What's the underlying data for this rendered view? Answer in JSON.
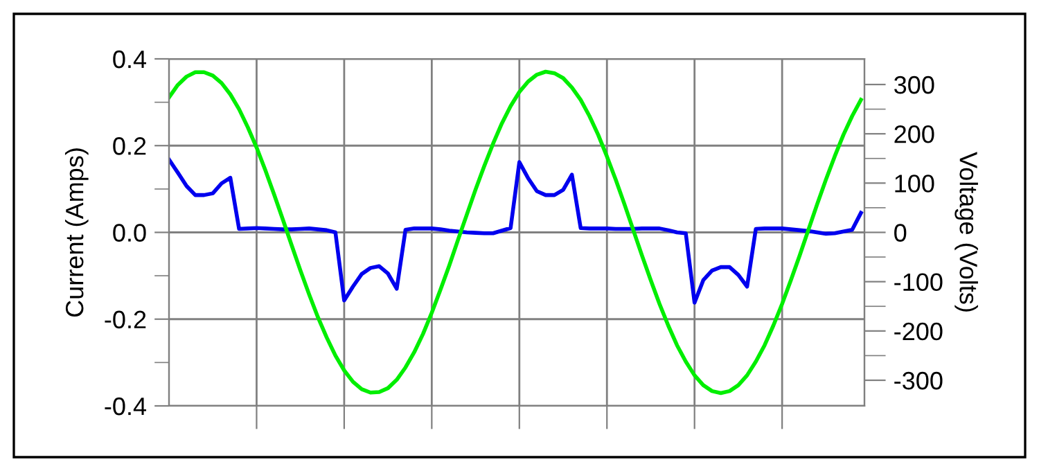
{
  "chart_data": {
    "type": "line",
    "ylabel": "Current (Amps)",
    "y2label": "Voltage (Volts)",
    "categories": [
      null,
      null,
      null,
      null,
      null,
      null,
      null,
      null,
      null,
      null,
      null,
      null,
      null,
      null,
      null,
      null,
      null,
      null,
      null,
      null,
      null,
      null,
      null,
      null,
      null,
      null,
      null,
      null,
      null,
      null,
      null,
      null,
      null,
      null,
      null,
      null,
      null,
      null,
      null,
      null,
      null,
      null,
      null,
      null,
      null,
      null,
      null,
      null,
      null,
      null,
      null,
      null,
      null,
      null,
      null,
      null,
      null,
      null,
      null,
      null,
      null,
      null,
      null,
      null,
      null,
      null,
      null,
      null,
      null,
      null,
      null,
      null,
      null,
      null,
      null,
      null,
      null,
      null,
      null,
      null
    ],
    "ylim": [
      -0.4,
      0.4
    ],
    "yticks": [
      -0.4,
      {
        "value": -0.3,
        "label": null
      },
      -0.2,
      {
        "value": -0.1,
        "label": null
      },
      {
        "value": 0,
        "label": "0.0"
      },
      {
        "value": 0.1,
        "label": null
      },
      0.2,
      {
        "value": 0.3,
        "label": null
      },
      0.4
    ],
    "y2lim": [
      -352,
      352
    ],
    "y2ticks": [
      -300,
      {
        "value": -250,
        "label": null
      },
      -200,
      {
        "value": -150,
        "label": null
      },
      -100,
      {
        "value": -50,
        "label": null
      },
      0,
      {
        "value": 50,
        "label": null
      },
      100,
      {
        "value": 150,
        "label": null
      },
      200,
      {
        "value": 250,
        "label": null
      },
      300
    ],
    "tick_labels": "y",
    "grid": true,
    "marker": "none",
    "line_style": "solid",
    "series": [
      {
        "color": "#00ee00",
        "axis": "y2",
        "values": [
          274,
          299,
          316,
          325,
          325,
          318,
          303,
          280,
          250,
          213,
          172,
          126,
          77,
          26,
          -26,
          -77,
          -126,
          -172,
          -213,
          -250,
          -280,
          -303,
          -318,
          -325,
          -324,
          -316,
          -299,
          -274,
          -243,
          -206,
          -163,
          -116,
          -67,
          -15,
          36,
          87,
          135,
          180,
          221,
          256,
          285,
          306,
          320,
          326,
          323,
          313,
          294,
          269,
          236,
          198,
          154,
          107,
          57,
          5,
          -47,
          -97,
          -145,
          -189,
          -229,
          -262,
          -290,
          -310,
          -322,
          -326,
          -322,
          -310,
          -290,
          -262,
          -229,
          -189,
          -145,
          -97,
          -47,
          5,
          57,
          107,
          154,
          198,
          236,
          269
        ]
      },
      {
        "color": "#0000ee",
        "values": [
          0.168,
          0.138,
          0.107,
          0.086,
          0.086,
          0.09,
          0.113,
          0.126,
          0.008,
          0.009,
          0.01,
          0.009,
          0.008,
          0.007,
          0.007,
          0.008,
          0.009,
          0.007,
          0.005,
          0.0,
          -0.157,
          -0.125,
          -0.096,
          -0.082,
          -0.078,
          -0.095,
          -0.13,
          0.006,
          0.009,
          0.009,
          0.009,
          0.007,
          0.004,
          0.002,
          0.0,
          -0.001,
          -0.002,
          -0.002,
          0.004,
          0.01,
          0.162,
          0.125,
          0.095,
          0.086,
          0.086,
          0.098,
          0.133,
          0.01,
          0.009,
          0.009,
          0.009,
          0.008,
          0.008,
          0.008,
          0.009,
          0.009,
          0.009,
          0.005,
          0.0,
          -0.002,
          -0.162,
          -0.11,
          -0.088,
          -0.08,
          -0.08,
          -0.098,
          -0.125,
          0.008,
          0.009,
          0.009,
          0.009,
          0.007,
          0.005,
          0.003,
          0.0,
          -0.003,
          -0.002,
          0.002,
          0.006,
          0.045
        ]
      }
    ]
  }
}
